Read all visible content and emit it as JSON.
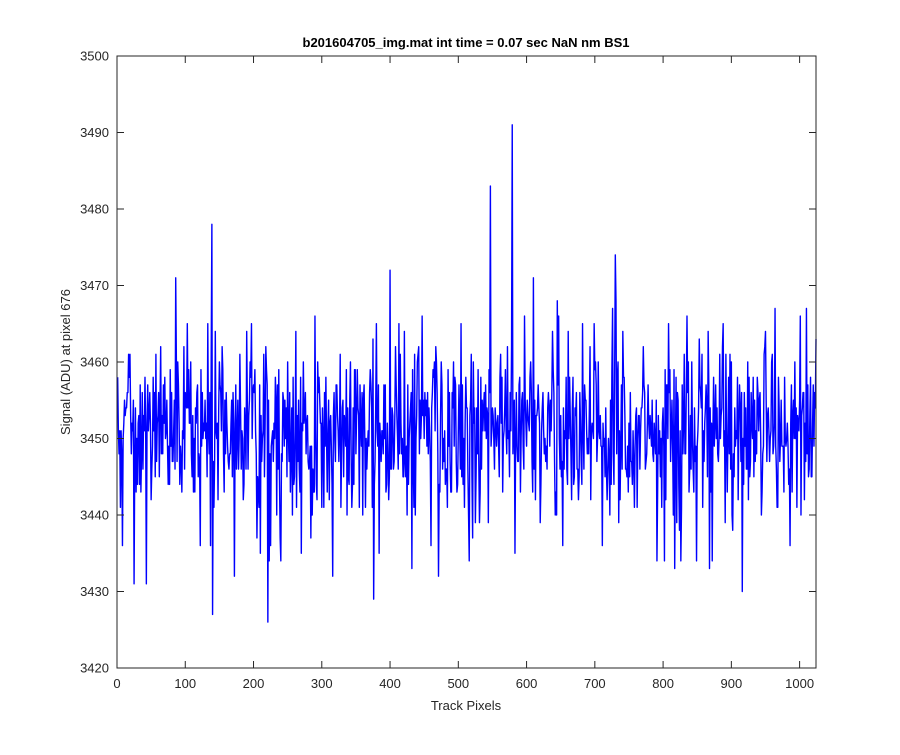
{
  "chart_data": {
    "type": "line",
    "title": "b201604705_img.mat int time = 0.07 sec  NaN nm BS1",
    "xlabel": "Track Pixels",
    "ylabel": "Signal (ADU) at pixel 676",
    "xlim": [
      0,
      1024
    ],
    "ylim": [
      3420,
      3500
    ],
    "xticks": [
      0,
      100,
      200,
      300,
      400,
      500,
      600,
      700,
      800,
      900,
      1000
    ],
    "yticks": [
      3420,
      3430,
      3440,
      3450,
      3460,
      3470,
      3480,
      3490,
      3500
    ],
    "grid": false,
    "line_color": "#0000ff",
    "series": [
      {
        "generator": "noise",
        "x_start": 1,
        "x_end": 1024,
        "step": 1,
        "mean": 3451,
        "std": 6.5,
        "peaks": [
          {
            "x": 139,
            "y": 3478
          },
          {
            "x": 140,
            "y": 3427
          },
          {
            "x": 86,
            "y": 3471
          },
          {
            "x": 221,
            "y": 3426
          },
          {
            "x": 376,
            "y": 3429
          },
          {
            "x": 400,
            "y": 3472
          },
          {
            "x": 547,
            "y": 3483
          },
          {
            "x": 579,
            "y": 3491
          },
          {
            "x": 730,
            "y": 3474
          },
          {
            "x": 916,
            "y": 3430
          },
          {
            "x": 25,
            "y": 3431
          },
          {
            "x": 43,
            "y": 3431
          },
          {
            "x": 172,
            "y": 3432
          },
          {
            "x": 316,
            "y": 3432
          },
          {
            "x": 432,
            "y": 3433
          },
          {
            "x": 471,
            "y": 3432
          },
          {
            "x": 583,
            "y": 3435
          },
          {
            "x": 610,
            "y": 3471
          },
          {
            "x": 817,
            "y": 3433
          },
          {
            "x": 849,
            "y": 3434
          },
          {
            "x": 868,
            "y": 3433
          },
          {
            "x": 964,
            "y": 3467
          },
          {
            "x": 1002,
            "y": 3440
          }
        ]
      }
    ]
  }
}
